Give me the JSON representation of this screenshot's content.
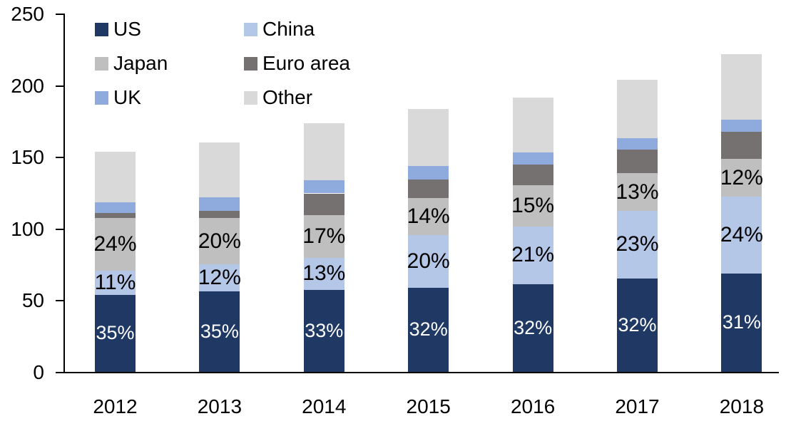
{
  "chart_data": {
    "type": "bar",
    "stacked": true,
    "title": "",
    "xlabel": "",
    "ylabel": "",
    "categories": [
      "2012",
      "2013",
      "2014",
      "2015",
      "2016",
      "2017",
      "2018"
    ],
    "series": [
      {
        "name": "US",
        "color": "#1F3864",
        "values": [
          53.7,
          56.0,
          57.2,
          58.7,
          61.2,
          65.3,
          68.8
        ],
        "labels": [
          "35%",
          "35%",
          "33%",
          "32%",
          "32%",
          "32%",
          "31%"
        ],
        "label_style": "light"
      },
      {
        "name": "China",
        "color": "#B4C7E7",
        "values": [
          16.9,
          19.2,
          22.5,
          36.7,
          40.2,
          46.9,
          53.3
        ],
        "labels": [
          "11%",
          "12%",
          "13%",
          "20%",
          "21%",
          "23%",
          "24%"
        ],
        "label_style": "dark"
      },
      {
        "name": "Japan",
        "color": "#BFBFBF",
        "values": [
          36.8,
          32.0,
          29.5,
          25.7,
          28.7,
          26.5,
          26.6
        ],
        "labels": [
          "24%",
          "20%",
          "17%",
          "14%",
          "15%",
          "13%",
          "12%"
        ],
        "label_style": "dark"
      },
      {
        "name": "Euro area",
        "color": "#767171",
        "values": [
          3.6,
          5.3,
          15.3,
          13.0,
          14.4,
          16.5,
          18.9
        ],
        "labels": null,
        "label_style": null
      },
      {
        "name": "UK",
        "color": "#8FAADC",
        "values": [
          7.5,
          9.5,
          9.0,
          9.5,
          8.5,
          7.9,
          8.5
        ],
        "labels": null,
        "label_style": null
      },
      {
        "name": "Other",
        "color": "#D9D9D9",
        "values": [
          34.9,
          38.0,
          39.8,
          39.6,
          38.3,
          40.9,
          45.8
        ],
        "labels": null,
        "label_style": null
      }
    ],
    "totals_estimated": [
      153.4,
      160.0,
      173.3,
      183.2,
      191.3,
      204.0,
      221.9
    ],
    "ylim": [
      0,
      250
    ],
    "y_ticks": [
      "0",
      "50",
      "100",
      "150",
      "200",
      "250"
    ],
    "grid": false,
    "legend_position": "top-left",
    "legend_rows": [
      [
        "US",
        "China"
      ],
      [
        "Japan",
        "Euro area"
      ],
      [
        "UK",
        "Other"
      ]
    ],
    "axis_color": "#000000",
    "background_color": "#FFFFFF"
  }
}
